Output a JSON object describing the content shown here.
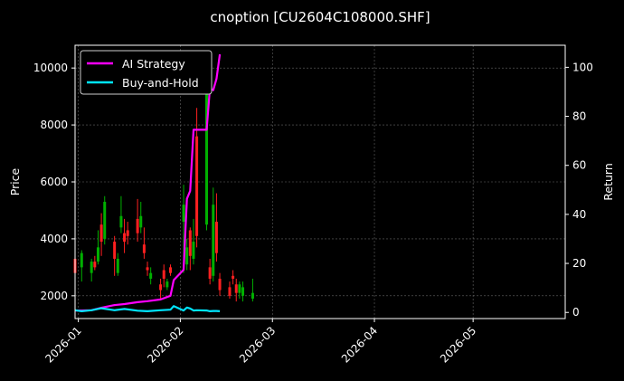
{
  "chart_data": {
    "type": "line",
    "title": "cnoption [CU2604C108000.SHF]",
    "xlabel": "",
    "ylabel": "Price",
    "y2label": "Return",
    "x_ticks": [
      "2026-01",
      "2026-02",
      "2026-03",
      "2026-04",
      "2026-05"
    ],
    "x_range": [
      "2025-12-31",
      "2026-05-29"
    ],
    "ylim": [
      1200,
      10800
    ],
    "y_ticks": [
      2000,
      4000,
      6000,
      8000,
      10000
    ],
    "y2lim": [
      -2.5,
      109
    ],
    "y2_ticks": [
      0,
      20,
      40,
      60,
      80,
      100
    ],
    "grid": true,
    "legend_position": "top-left",
    "colors": {
      "ai_strategy": "#ff00ff",
      "buy_and_hold": "#00e5ff",
      "candle_up": "#00b000",
      "candle_down": "#ff2020",
      "grid": "#666666",
      "background": "#000000",
      "axes": "#ffffff"
    },
    "series": [
      {
        "name": "AI Strategy",
        "axis": "right",
        "x": [
          "2025-12-31",
          "2026-01-02",
          "2026-01-05",
          "2026-01-08",
          "2026-01-12",
          "2026-01-15",
          "2026-01-19",
          "2026-01-22",
          "2026-01-26",
          "2026-01-29",
          "2026-01-30",
          "2026-02-02",
          "2026-02-03",
          "2026-02-04",
          "2026-02-05",
          "2026-02-06",
          "2026-02-09",
          "2026-02-10",
          "2026-02-11",
          "2026-02-12",
          "2026-02-13"
        ],
        "values": [
          0.8,
          0.8,
          0.9,
          1.9,
          3,
          3.4,
          4.2,
          4.6,
          5.3,
          6.8,
          13.2,
          17.4,
          46.4,
          49.6,
          74.5,
          74.5,
          74.5,
          91.4,
          90.7,
          95.3,
          105.3
        ]
      },
      {
        "name": "Buy-and-Hold",
        "axis": "right",
        "x": [
          "2025-12-31",
          "2026-01-02",
          "2026-01-05",
          "2026-01-08",
          "2026-01-12",
          "2026-01-15",
          "2026-01-19",
          "2026-01-22",
          "2026-01-26",
          "2026-01-29",
          "2026-01-30",
          "2026-02-02",
          "2026-02-03",
          "2026-02-04",
          "2026-02-05",
          "2026-02-06",
          "2026-02-09",
          "2026-02-10",
          "2026-02-11",
          "2026-02-12",
          "2026-02-13"
        ],
        "values": [
          0.9,
          0.5,
          0.9,
          1.7,
          0.9,
          1.4,
          0.7,
          0.5,
          0.9,
          1.1,
          2.6,
          0.8,
          2.0,
          1.6,
          0.8,
          0.9,
          0.8,
          0.5,
          0.6,
          0.6,
          0.5
        ]
      }
    ],
    "candles": [
      {
        "x": "2025-12-31",
        "open": 3300,
        "close": 2800,
        "high": 3700,
        "low": 2600
      },
      {
        "x": "2026-01-02",
        "open": 3000,
        "close": 3500,
        "high": 3600,
        "low": 2500
      },
      {
        "x": "2026-01-05",
        "open": 2800,
        "close": 3200,
        "high": 3300,
        "low": 2500
      },
      {
        "x": "2026-01-06",
        "open": 3200,
        "close": 3000,
        "high": 3400,
        "low": 2900
      },
      {
        "x": "2026-01-07",
        "open": 3200,
        "close": 3700,
        "high": 4300,
        "low": 3100
      },
      {
        "x": "2026-01-08",
        "open": 4500,
        "close": 3900,
        "high": 4900,
        "low": 3400
      },
      {
        "x": "2026-01-09",
        "open": 4000,
        "close": 5300,
        "high": 5500,
        "low": 3800
      },
      {
        "x": "2026-01-12",
        "open": 3900,
        "close": 3300,
        "high": 4100,
        "low": 2700
      },
      {
        "x": "2026-01-13",
        "open": 2800,
        "close": 3300,
        "high": 3500,
        "low": 2700
      },
      {
        "x": "2026-01-14",
        "open": 4400,
        "close": 4800,
        "high": 5500,
        "low": 4200
      },
      {
        "x": "2026-01-15",
        "open": 4200,
        "close": 3900,
        "high": 4700,
        "low": 3500
      },
      {
        "x": "2026-01-16",
        "open": 4300,
        "close": 4100,
        "high": 4600,
        "low": 3800
      },
      {
        "x": "2026-01-19",
        "open": 4700,
        "close": 4200,
        "high": 5400,
        "low": 3900
      },
      {
        "x": "2026-01-20",
        "open": 4400,
        "close": 4800,
        "high": 5300,
        "low": 4200
      },
      {
        "x": "2026-01-21",
        "open": 3800,
        "close": 3500,
        "high": 4400,
        "low": 3300
      },
      {
        "x": "2026-01-22",
        "open": 3000,
        "close": 2900,
        "high": 3200,
        "low": 2700
      },
      {
        "x": "2026-01-23",
        "open": 2600,
        "close": 2800,
        "high": 3000,
        "low": 2400
      },
      {
        "x": "2026-01-26",
        "open": 2400,
        "close": 2200,
        "high": 2600,
        "low": 1900
      },
      {
        "x": "2026-01-27",
        "open": 2900,
        "close": 2600,
        "high": 3100,
        "low": 2300
      },
      {
        "x": "2026-01-28",
        "open": 2300,
        "close": 2500,
        "high": 2600,
        "low": 2200
      },
      {
        "x": "2026-01-29",
        "open": 3000,
        "close": 2800,
        "high": 3100,
        "low": 2700
      },
      {
        "x": "2026-02-02",
        "open": 4600,
        "close": 5200,
        "high": 5900,
        "low": 2800
      },
      {
        "x": "2026-02-03",
        "open": 3100,
        "close": 3700,
        "high": 4000,
        "low": 2900
      },
      {
        "x": "2026-02-04",
        "open": 4300,
        "close": 3400,
        "high": 4400,
        "low": 2900
      },
      {
        "x": "2026-02-05",
        "open": 3300,
        "close": 3900,
        "high": 4700,
        "low": 3100
      },
      {
        "x": "2026-02-06",
        "open": 7600,
        "close": 4100,
        "high": 8600,
        "low": 3700
      },
      {
        "x": "2026-02-09",
        "open": 4500,
        "close": 9900,
        "high": 10100,
        "low": 4300
      },
      {
        "x": "2026-02-10",
        "open": 3000,
        "close": 2600,
        "high": 3300,
        "low": 2400
      },
      {
        "x": "2026-02-11",
        "open": 2700,
        "close": 5200,
        "high": 5800,
        "low": 2500
      },
      {
        "x": "2026-02-12",
        "open": 4600,
        "close": 3500,
        "high": 5600,
        "low": 3200
      },
      {
        "x": "2026-02-13",
        "open": 2600,
        "close": 2200,
        "high": 2800,
        "low": 2000
      },
      {
        "x": "2026-02-16",
        "open": 2300,
        "close": 2000,
        "high": 2500,
        "low": 1900
      },
      {
        "x": "2026-02-17",
        "open": 2700,
        "close": 2600,
        "high": 2900,
        "low": 2400
      },
      {
        "x": "2026-02-18",
        "open": 2400,
        "close": 2100,
        "high": 2600,
        "low": 1800
      },
      {
        "x": "2026-02-19",
        "open": 2100,
        "close": 2400,
        "high": 2500,
        "low": 1900
      },
      {
        "x": "2026-02-20",
        "open": 2000,
        "close": 2300,
        "high": 2500,
        "low": 1800
      },
      {
        "x": "2026-02-23",
        "open": 1900,
        "close": 2100,
        "high": 2600,
        "low": 1800
      }
    ]
  }
}
